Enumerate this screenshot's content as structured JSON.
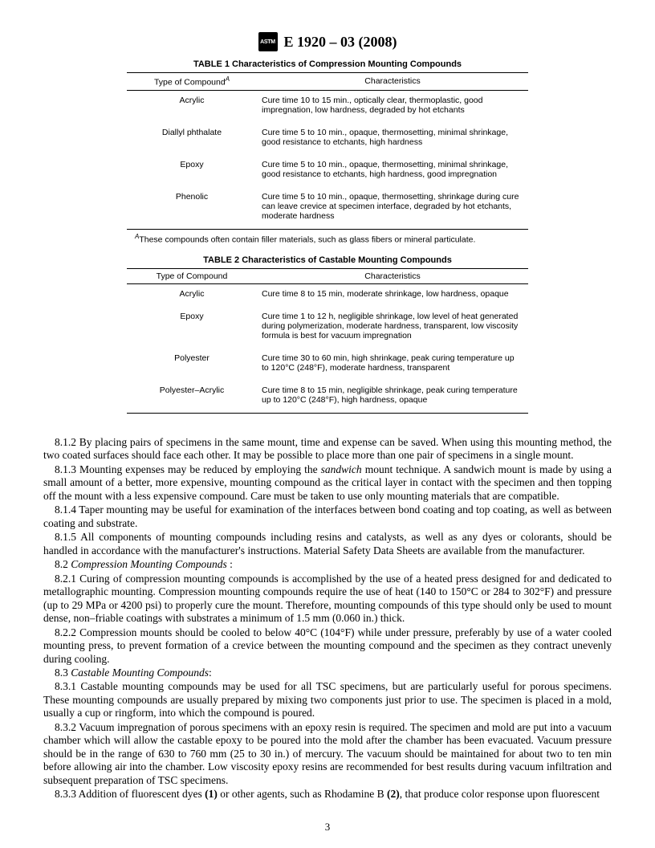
{
  "header": {
    "logo_text": "ASTM",
    "designation": "E 1920 – 03 (2008)"
  },
  "table1": {
    "title": "TABLE 1  Characteristics of Compression Mounting Compounds",
    "col_type_header": "Type of Compound",
    "col_type_sup": "A",
    "col_char_header": "Characteristics",
    "rows": [
      {
        "type": "Acrylic",
        "char": "Cure time 10 to 15 min., optically clear, thermoplastic, good impregnation, low hardness, degraded by hot etchants"
      },
      {
        "type": "Diallyl phthalate",
        "char": "Cure time 5 to 10 min., opaque, thermosetting, minimal shrinkage, good resistance to etchants, high hardness"
      },
      {
        "type": "Epoxy",
        "char": "Cure time 5 to 10 min., opaque, thermosetting, minimal shrinkage, good resistance to etchants, high hardness, good impregnation"
      },
      {
        "type": "Phenolic",
        "char": "Cure time 5 to 10 min., opaque, thermosetting, shrinkage during cure can leave crevice at specimen interface, degraded by hot etchants, moderate hardness"
      }
    ],
    "footnote_sup": "A",
    "footnote": "These compounds often contain filler materials, such as glass fibers or mineral particulate."
  },
  "table2": {
    "title": "TABLE 2  Characteristics of Castable Mounting Compounds",
    "col_type_header": "Type of Compound",
    "col_char_header": "Characteristics",
    "rows": [
      {
        "type": "Acrylic",
        "char": "Cure time 8 to 15 min, moderate shrinkage, low hardness, opaque"
      },
      {
        "type": "Epoxy",
        "char": "Cure time 1 to 12 h, negligible shrinkage, low level of heat generated during polymerization, moderate hardness, transparent, low viscosity formula is best for vacuum impregnation"
      },
      {
        "type": "Polyester",
        "char": "Cure time 30 to 60 min, high shrinkage, peak curing temperature up to 120°C (248°F), moderate hardness, transparent"
      },
      {
        "type": "Polyester–Acrylic",
        "char": "Cure time 8 to 15 min, negligible shrinkage, peak curing temperature up to 120°C (248°F), high hardness, opaque"
      }
    ]
  },
  "body": {
    "p812": "8.1.2 By placing pairs of specimens in the same mount, time and expense can be saved. When using this mounting method, the two coated surfaces should face each other. It may be possible to place more than one pair of specimens in a single mount.",
    "p813_a": "8.1.3 Mounting expenses may be reduced by employing the ",
    "p813_em": "sandwich",
    "p813_b": " mount technique. A sandwich mount is made by using a small amount of a better, more expensive, mounting compound as the critical layer in contact with the specimen and then topping off the mount with a less expensive compound. Care must be taken to use only mounting materials that are compatible.",
    "p814": "8.1.4 Taper mounting may be useful for examination of the interfaces between bond coating and top coating, as well as between coating and substrate.",
    "p815": "8.1.5 All components of mounting compounds including resins and catalysts, as well as any dyes or colorants, should be handled in accordance with the manufacturer's instructions. Material Safety Data Sheets are available from the manufacturer.",
    "p82_a": "8.2 ",
    "p82_em": "Compression Mounting Compounds ",
    "p82_b": ":",
    "p821": "8.2.1 Curing of compression mounting compounds is accomplished by the use of a heated press designed for and dedicated to metallographic mounting. Compression mounting compounds require the use of heat (140 to 150°C or 284 to 302°F) and pressure (up to 29 MPa or 4200 psi) to properly cure the mount. Therefore, mounting compounds of this type should only be used to mount dense, non–friable coatings with substrates a minimum of 1.5 mm (0.060 in.) thick.",
    "p822": "8.2.2 Compression mounts should be cooled to below 40°C (104°F) while under pressure, preferably by use of a water cooled mounting press, to prevent formation of a crevice between the mounting compound and the specimen as they contract unevenly during cooling.",
    "p83_a": "8.3 ",
    "p83_em": "Castable Mounting Compounds",
    "p83_b": ":",
    "p831": "8.3.1 Castable mounting compounds may be used for all TSC specimens, but are particularly useful for porous specimens. These mounting compounds are usually prepared by mixing two components just prior to use. The specimen is placed in a mold, usually a cup or ringform, into which the compound is poured.",
    "p832": "8.3.2 Vacuum impregnation of porous specimens with an epoxy resin is required. The specimen and mold are put into a vacuum chamber which will allow the castable epoxy to be poured into the mold after the chamber has been evacuated. Vacuum pressure should be in the range of 630 to 760 mm (25 to 30 in.) of mercury. The vacuum should be maintained for about two to ten min before allowing air into the chamber. Low viscosity epoxy resins are recommended for best results during vacuum infiltration and subsequent preparation of TSC specimens.",
    "p833_a": "8.3.3 Addition of fluorescent dyes ",
    "p833_b": "(1)",
    "p833_c": " or other agents, such as Rhodamine B ",
    "p833_d": "(2)",
    "p833_e": ", that produce color response upon fluorescent"
  },
  "page_number": "3"
}
